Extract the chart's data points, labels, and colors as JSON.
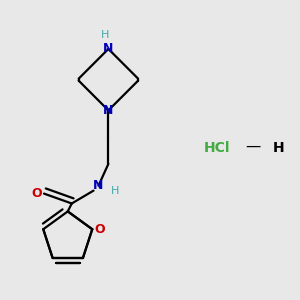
{
  "background_color": "#e8e8e8",
  "bond_color": "#000000",
  "N_color": "#0000bb",
  "NH_color": "#44aaaa",
  "O_color": "#cc0000",
  "HCl_color": "#44aa44",
  "line_width": 1.6,
  "figsize": [
    3.0,
    3.0
  ],
  "dpi": 100,
  "xlim": [
    0,
    3.0
  ],
  "ylim": [
    0,
    3.0
  ]
}
